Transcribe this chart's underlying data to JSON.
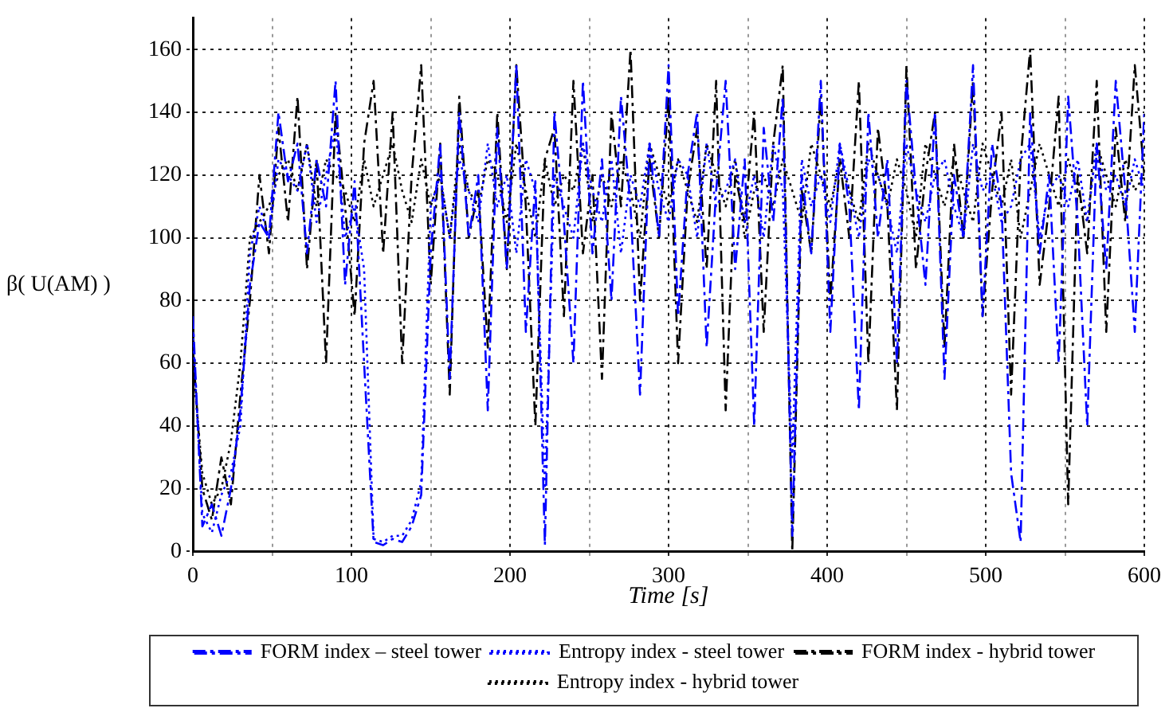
{
  "chart_data": {
    "type": "line",
    "xlabel": "Time [s]",
    "ylabel": "β( U(AM) )",
    "x": [
      0,
      6,
      12,
      18,
      24,
      30,
      36,
      42,
      48,
      54,
      60,
      66,
      72,
      78,
      84,
      90,
      96,
      102,
      108,
      114,
      120,
      126,
      132,
      138,
      144,
      150,
      156,
      162,
      168,
      174,
      180,
      186,
      192,
      198,
      204,
      210,
      216,
      222,
      228,
      234,
      240,
      246,
      252,
      258,
      264,
      270,
      276,
      282,
      288,
      294,
      300,
      306,
      312,
      318,
      324,
      330,
      336,
      342,
      348,
      354,
      360,
      366,
      372,
      378,
      384,
      390,
      396,
      402,
      408,
      414,
      420,
      426,
      432,
      438,
      444,
      450,
      456,
      462,
      468,
      474,
      480,
      486,
      492,
      498,
      504,
      510,
      516,
      522,
      528,
      534,
      540,
      546,
      552,
      558,
      564,
      570,
      576,
      582,
      588,
      594,
      600
    ],
    "series": [
      {
        "name": "FORM index – steel tower",
        "color": "#0000ff",
        "line_style": "dashed",
        "values": [
          75,
          8,
          15,
          5,
          20,
          45,
          85,
          105,
          100,
          140,
          118,
          130,
          95,
          125,
          110,
          150,
          85,
          118,
          60,
          3,
          2,
          4,
          3,
          8,
          18,
          95,
          130,
          55,
          140,
          100,
          120,
          45,
          135,
          90,
          155,
          70,
          118,
          2,
          140,
          105,
          60,
          150,
          95,
          125,
          80,
          145,
          110,
          50,
          130,
          100,
          155,
          75,
          120,
          140,
          65,
          115,
          150,
          90,
          125,
          40,
          135,
          105,
          145,
          5,
          120,
          95,
          150,
          70,
          130,
          110,
          45,
          140,
          100,
          125,
          60,
          150,
          115,
          85,
          140,
          55,
          120,
          100,
          155,
          75,
          130,
          110,
          25,
          3,
          140,
          95,
          120,
          60,
          145,
          105,
          40,
          130,
          90,
          150,
          115,
          70,
          140
        ]
      },
      {
        "name": "Entropy index - steel tower",
        "color": "#0000ff",
        "line_style": "dotted",
        "values": [
          70,
          12,
          6,
          18,
          25,
          40,
          95,
          110,
          100,
          125,
          120,
          115,
          130,
          105,
          120,
          135,
          100,
          110,
          90,
          4,
          3,
          5,
          5,
          10,
          22,
          110,
          120,
          100,
          125,
          115,
          105,
          130,
          110,
          120,
          95,
          125,
          115,
          20,
          120,
          110,
          100,
          130,
          115,
          105,
          125,
          95,
          120,
          110,
          130,
          115,
          105,
          125,
          120,
          100,
          130,
          110,
          115,
          125,
          105,
          120,
          100,
          130,
          115,
          30,
          125,
          110,
          120,
          105,
          130,
          115,
          100,
          125,
          120,
          110,
          95,
          130,
          115,
          105,
          120,
          125,
          110,
          100,
          130,
          115,
          120,
          105,
          110,
          125,
          130,
          100,
          115,
          120,
          110,
          125,
          105,
          130,
          115,
          120,
          110,
          125,
          115
        ]
      },
      {
        "name": "FORM index - hybrid tower",
        "color": "#000000",
        "line_style": "dashed",
        "values": [
          65,
          20,
          10,
          30,
          15,
          50,
          80,
          120,
          95,
          135,
          105,
          145,
          90,
          125,
          60,
          140,
          110,
          75,
          130,
          150,
          95,
          140,
          60,
          120,
          155,
          85,
          130,
          50,
          145,
          100,
          115,
          65,
          140,
          90,
          155,
          110,
          40,
          125,
          135,
          75,
          150,
          95,
          120,
          55,
          140,
          110,
          160,
          80,
          125,
          100,
          145,
          60,
          115,
          135,
          90,
          150,
          45,
          120,
          105,
          140,
          70,
          130,
          155,
          0,
          115,
          95,
          145,
          80,
          125,
          100,
          150,
          60,
          135,
          110,
          45,
          155,
          90,
          120,
          140,
          65,
          130,
          100,
          150,
          75,
          115,
          140,
          50,
          125,
          160,
          85,
          110,
          145,
          15,
          120,
          95,
          150,
          70,
          135,
          105,
          155,
          120
        ]
      },
      {
        "name": "Entropy index - hybrid tower",
        "color": "#000000",
        "line_style": "dotted",
        "values": [
          60,
          25,
          15,
          20,
          35,
          60,
          100,
          105,
          110,
          120,
          125,
          115,
          130,
          110,
          125,
          120,
          115,
          105,
          125,
          110,
          120,
          130,
          115,
          105,
          125,
          110,
          120,
          100,
          130,
          115,
          110,
          125,
          120,
          105,
          130,
          115,
          100,
          125,
          110,
          120,
          115,
          130,
          105,
          120,
          110,
          125,
          115,
          100,
          130,
          120,
          110,
          125,
          115,
          105,
          130,
          120,
          110,
          125,
          100,
          115,
          120,
          110,
          125,
          115,
          105,
          130,
          120,
          110,
          125,
          115,
          105,
          130,
          120,
          110,
          125,
          115,
          100,
          130,
          120,
          110,
          125,
          115,
          105,
          130,
          120,
          110,
          125,
          100,
          115,
          130,
          120,
          110,
          125,
          115,
          105,
          130,
          120,
          110,
          125,
          115,
          120
        ]
      }
    ],
    "xlim": [
      0,
      600
    ],
    "xticks": [
      0,
      {
        "value": 50,
        "label": null
      },
      100,
      {
        "value": 150,
        "label": null
      },
      200,
      {
        "value": 250,
        "label": null
      },
      300,
      {
        "value": 350,
        "label": null
      },
      400,
      {
        "value": 450,
        "label": null
      },
      500,
      {
        "value": 550,
        "label": null
      },
      600
    ],
    "ylim": [
      0,
      170
    ],
    "yticks": [
      0,
      20,
      40,
      60,
      80,
      100,
      120,
      140,
      160
    ],
    "grid": true,
    "legend": "bottom"
  }
}
